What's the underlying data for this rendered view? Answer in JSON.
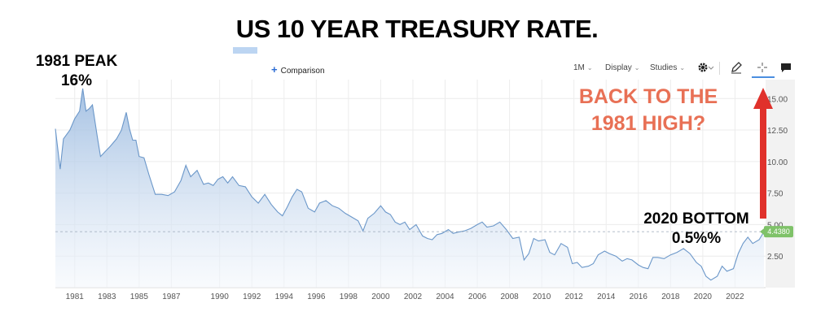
{
  "page": {
    "title": "US 10 YEAR TREASURY RATE."
  },
  "toolbar": {
    "comparison_label": "Comparison",
    "interval_label": "1M",
    "display_label": "Display",
    "studies_label": "Studies"
  },
  "annotations": {
    "peak_line1": "1981 PEAK",
    "peak_line2": "16%",
    "back_line1": "BACK TO THE",
    "back_line2": "1981 HIGH?",
    "bottom_line1": "2020 BOTTOM",
    "bottom_line2": "0.5%%"
  },
  "colors": {
    "line": "#6b97c9",
    "fill_top": "#9cbbe0",
    "fill_bottom": "#f3f7fc",
    "arrow": "#e0312b",
    "badge": "#7fc269",
    "annotation": "#e87055"
  },
  "chart_data": {
    "type": "area",
    "title": "US 10 YEAR TREASURY RATE.",
    "xlabel": "",
    "ylabel": "",
    "xlim": [
      1979.8,
      2023.9
    ],
    "ylim": [
      0,
      16.5
    ],
    "grid": true,
    "last_value_label": "4.4380",
    "x_ticks": [
      1981,
      1983,
      1985,
      1987,
      1990,
      1992,
      1994,
      1996,
      1998,
      2000,
      2002,
      2004,
      2006,
      2008,
      2010,
      2012,
      2014,
      2016,
      2018,
      2020,
      2022
    ],
    "x_tick_labels": [
      "1981",
      "1983",
      "1985",
      "1987",
      "1990",
      "1992",
      "1994",
      "1996",
      "1998",
      "2000",
      "2002",
      "2004",
      "2006",
      "2008",
      "2010",
      "2012",
      "2014",
      "2016",
      "2018",
      "2020",
      "2022"
    ],
    "y_ticks": [
      2.5,
      5.0,
      7.5,
      10.0,
      12.5,
      15.0
    ],
    "y_tick_labels": [
      "2.50",
      "5.00",
      "7.50",
      "10.00",
      "12.50",
      "15.00"
    ],
    "x": [
      1979.8,
      1980.1,
      1980.3,
      1980.7,
      1981.0,
      1981.3,
      1981.5,
      1981.7,
      1981.9,
      1982.1,
      1982.4,
      1982.6,
      1982.9,
      1983.2,
      1983.6,
      1983.9,
      1984.2,
      1984.4,
      1984.6,
      1984.8,
      1985.0,
      1985.3,
      1985.6,
      1986.0,
      1986.4,
      1986.8,
      1987.2,
      1987.6,
      1987.9,
      1988.2,
      1988.6,
      1989.0,
      1989.3,
      1989.6,
      1989.9,
      1990.2,
      1990.5,
      1990.8,
      1991.2,
      1991.6,
      1992.0,
      1992.4,
      1992.8,
      1993.2,
      1993.6,
      1993.9,
      1994.2,
      1994.5,
      1994.8,
      1995.1,
      1995.5,
      1995.9,
      1996.2,
      1996.6,
      1997.0,
      1997.4,
      1997.8,
      1998.2,
      1998.6,
      1998.9,
      1999.2,
      1999.6,
      2000.0,
      2000.3,
      2000.6,
      2000.9,
      2001.2,
      2001.5,
      2001.8,
      2002.2,
      2002.6,
      2002.9,
      2003.2,
      2003.5,
      2003.8,
      2004.2,
      2004.5,
      2004.8,
      2005.2,
      2005.6,
      2006.0,
      2006.3,
      2006.6,
      2007.0,
      2007.4,
      2007.8,
      2008.2,
      2008.6,
      2008.9,
      2009.2,
      2009.5,
      2009.8,
      2010.2,
      2010.5,
      2010.8,
      2011.2,
      2011.6,
      2011.9,
      2012.2,
      2012.5,
      2012.9,
      2013.2,
      2013.5,
      2013.9,
      2014.2,
      2014.6,
      2015.0,
      2015.3,
      2015.6,
      2016.0,
      2016.3,
      2016.6,
      2016.9,
      2017.2,
      2017.6,
      2018.0,
      2018.4,
      2018.8,
      2019.2,
      2019.6,
      2019.9,
      2020.2,
      2020.5,
      2020.9,
      2021.2,
      2021.5,
      2021.9,
      2022.2,
      2022.5,
      2022.8,
      2023.1,
      2023.5,
      2023.8
    ],
    "values": [
      12.6,
      9.4,
      11.8,
      12.5,
      13.4,
      14.0,
      15.8,
      14.0,
      14.2,
      14.5,
      12.0,
      10.4,
      10.8,
      11.2,
      11.8,
      12.5,
      13.9,
      12.6,
      11.7,
      11.7,
      10.4,
      10.3,
      9.0,
      7.4,
      7.4,
      7.3,
      7.6,
      8.5,
      9.7,
      8.8,
      9.3,
      8.2,
      8.3,
      8.1,
      8.6,
      8.8,
      8.3,
      8.8,
      8.1,
      8.0,
      7.2,
      6.7,
      7.4,
      6.6,
      6.0,
      5.7,
      6.4,
      7.2,
      7.8,
      7.6,
      6.3,
      6.0,
      6.7,
      6.9,
      6.5,
      6.3,
      5.9,
      5.6,
      5.3,
      4.5,
      5.5,
      5.9,
      6.5,
      6.0,
      5.8,
      5.2,
      5.0,
      5.2,
      4.6,
      5.0,
      4.1,
      3.9,
      3.8,
      4.2,
      4.3,
      4.6,
      4.3,
      4.4,
      4.5,
      4.7,
      5.0,
      5.2,
      4.8,
      4.9,
      5.2,
      4.6,
      3.9,
      4.0,
      2.2,
      2.7,
      3.9,
      3.7,
      3.8,
      2.8,
      2.6,
      3.5,
      3.2,
      1.9,
      2.0,
      1.6,
      1.7,
      1.9,
      2.6,
      2.9,
      2.7,
      2.5,
      2.1,
      2.3,
      2.2,
      1.8,
      1.6,
      1.5,
      2.4,
      2.4,
      2.3,
      2.6,
      2.8,
      3.1,
      2.7,
      2.0,
      1.7,
      0.9,
      0.6,
      0.9,
      1.7,
      1.3,
      1.5,
      2.7,
      3.5,
      4.0,
      3.5,
      3.8,
      4.44
    ]
  }
}
